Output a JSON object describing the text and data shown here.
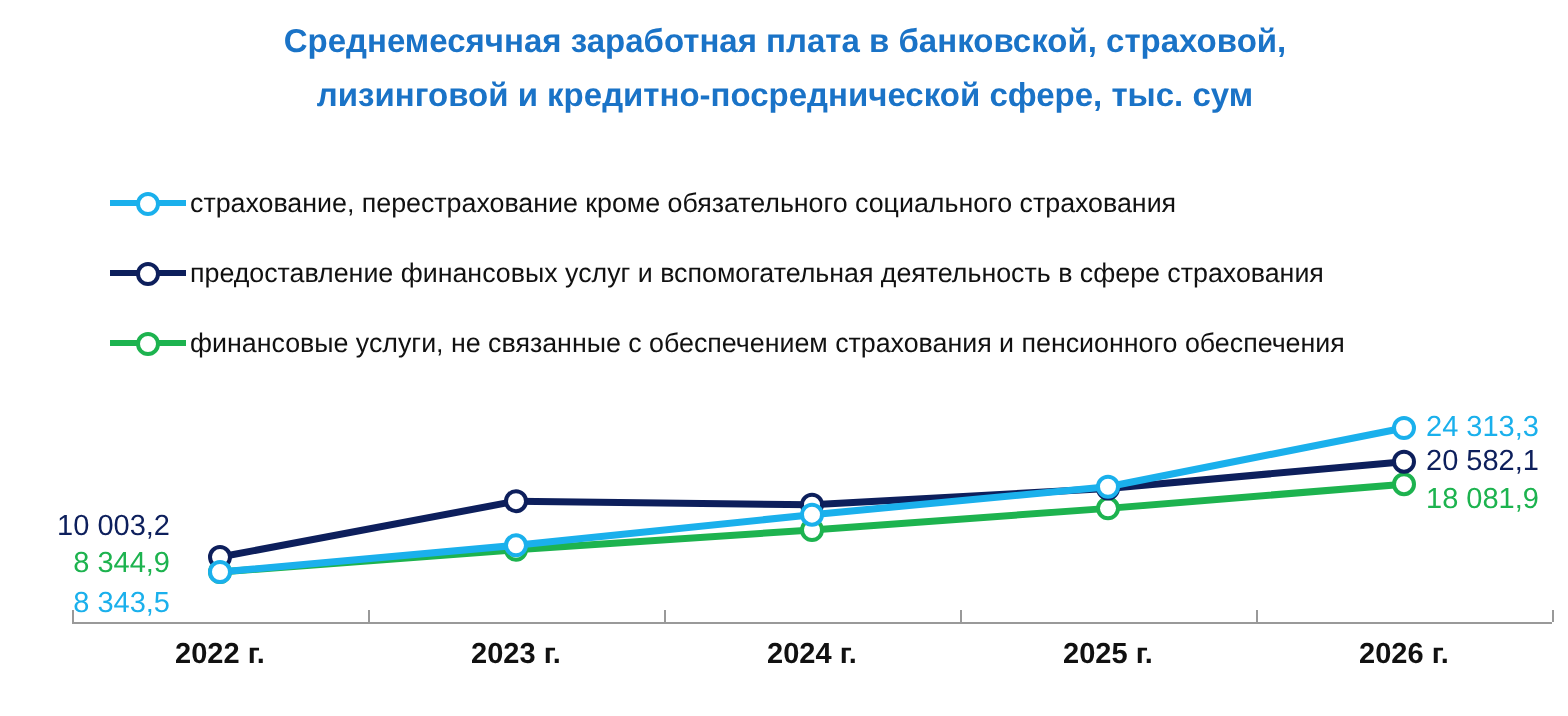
{
  "chart_data": {
    "type": "line",
    "title": "Среднемесячная заработная плата в банковской, страховой, лизинговой и кредитно-посреднической сфере, тыс. сум",
    "categories": [
      "2022 г.",
      "2023 г.",
      "2024 г.",
      "2025 г.",
      "2026 г."
    ],
    "series": [
      {
        "name": "страхование, перестрахование  кроме обязательного социального страхования",
        "color": "#1ab0ec",
        "values": [
          8343.5,
          11300,
          14700,
          17800,
          24313.3
        ],
        "value_labels": [
          "8 343,5",
          null,
          null,
          null,
          "24 313,3"
        ]
      },
      {
        "name": "предоставление финансовых услуг и вспомогательная деятельность в сфере страхования",
        "color": "#0d1f5c",
        "values": [
          10003.2,
          16200,
          15800,
          17600,
          20582.1
        ],
        "value_labels": [
          "10 003,2",
          null,
          null,
          null,
          "20 582,1"
        ]
      },
      {
        "name": "финансовые услуги, не связанные с обеспечением страхования и пенсионного обеспечения",
        "color": "#1db34f",
        "values": [
          8344.9,
          10800,
          13000,
          15400,
          18081.9
        ],
        "value_labels": [
          "8 344,9",
          null,
          null,
          null,
          "18 081,9"
        ]
      }
    ],
    "legend": "top left",
    "marker": "circle",
    "line_style": "solid",
    "grid": false
  }
}
